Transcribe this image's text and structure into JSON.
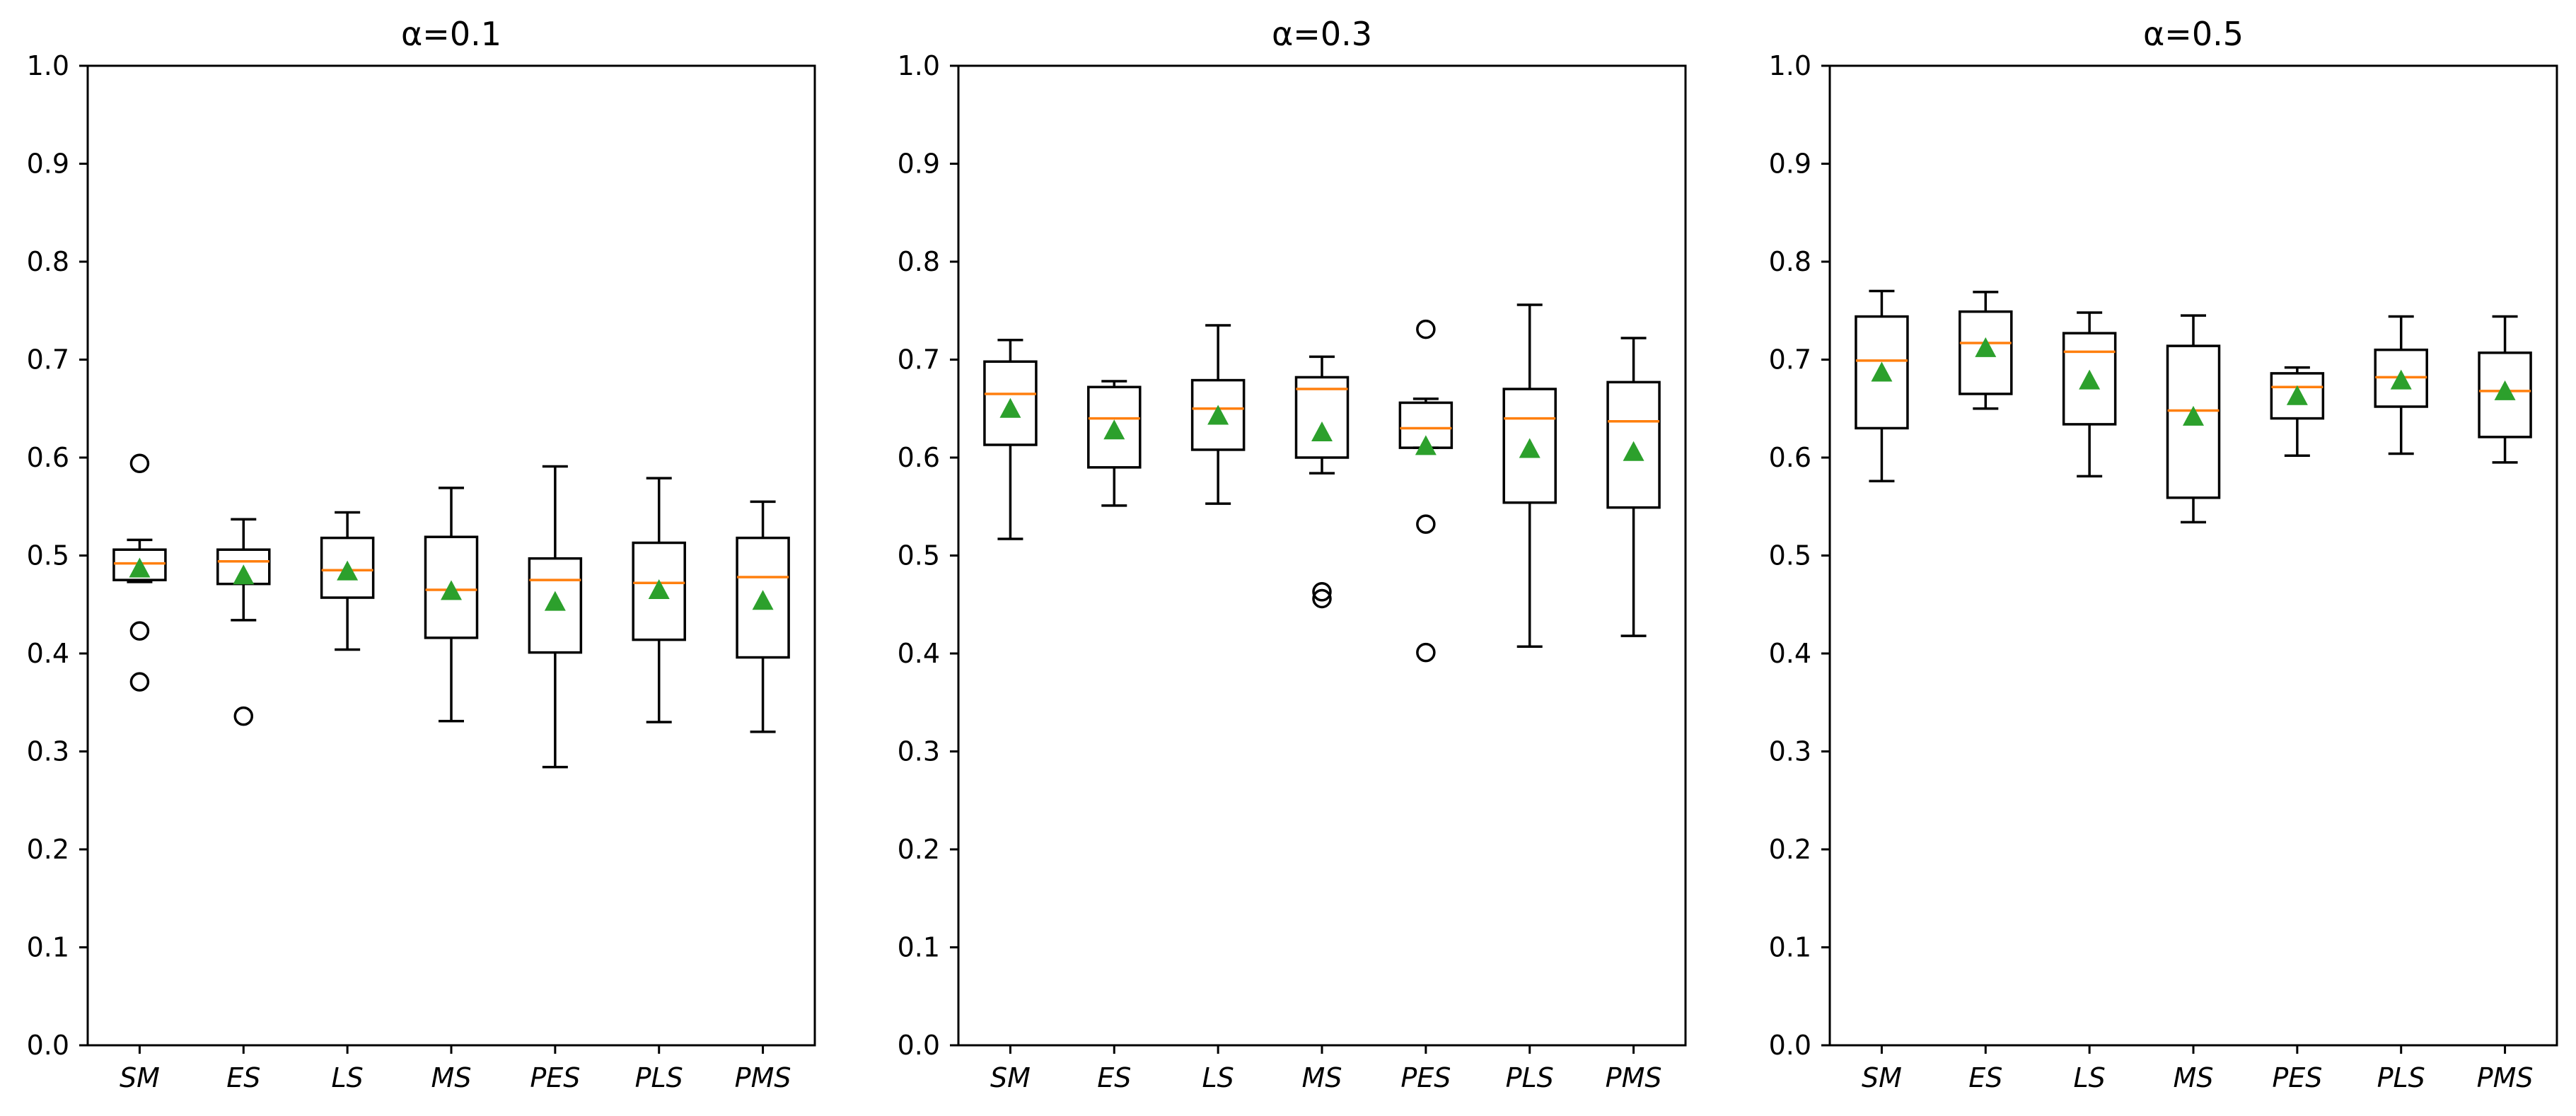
{
  "chart_data": [
    {
      "type": "boxplot",
      "title": "α=0.1",
      "ylim": [
        0.0,
        1.0
      ],
      "yticks": [
        "0.0",
        "0.1",
        "0.2",
        "0.3",
        "0.4",
        "0.5",
        "0.6",
        "0.7",
        "0.8",
        "0.9",
        "1.0"
      ],
      "categories": [
        "SM",
        "ES",
        "LS",
        "MS",
        "PES",
        "PLS",
        "PMS"
      ],
      "boxes": [
        {
          "whislo": 0.473,
          "q1": 0.475,
          "med": 0.492,
          "q3": 0.506,
          "whishi": 0.516,
          "mean": 0.487,
          "fliers": [
            0.594,
            0.423,
            0.371
          ]
        },
        {
          "whislo": 0.434,
          "q1": 0.471,
          "med": 0.494,
          "q3": 0.506,
          "whishi": 0.537,
          "mean": 0.48,
          "fliers": [
            0.336
          ]
        },
        {
          "whislo": 0.404,
          "q1": 0.457,
          "med": 0.485,
          "q3": 0.518,
          "whishi": 0.544,
          "mean": 0.484,
          "fliers": []
        },
        {
          "whislo": 0.331,
          "q1": 0.416,
          "med": 0.465,
          "q3": 0.519,
          "whishi": 0.569,
          "mean": 0.464,
          "fliers": []
        },
        {
          "whislo": 0.284,
          "q1": 0.401,
          "med": 0.475,
          "q3": 0.497,
          "whishi": 0.591,
          "mean": 0.453,
          "fliers": []
        },
        {
          "whislo": 0.33,
          "q1": 0.414,
          "med": 0.472,
          "q3": 0.513,
          "whishi": 0.579,
          "mean": 0.465,
          "fliers": []
        },
        {
          "whislo": 0.32,
          "q1": 0.396,
          "med": 0.478,
          "q3": 0.518,
          "whishi": 0.555,
          "mean": 0.454,
          "fliers": []
        }
      ]
    },
    {
      "type": "boxplot",
      "title": "α=0.3",
      "ylim": [
        0.0,
        1.0
      ],
      "yticks": [
        "0.0",
        "0.1",
        "0.2",
        "0.3",
        "0.4",
        "0.5",
        "0.6",
        "0.7",
        "0.8",
        "0.9",
        "1.0"
      ],
      "categories": [
        "SM",
        "ES",
        "LS",
        "MS",
        "PES",
        "PLS",
        "PMS"
      ],
      "boxes": [
        {
          "whislo": 0.517,
          "q1": 0.613,
          "med": 0.665,
          "q3": 0.698,
          "whishi": 0.72,
          "mean": 0.65,
          "fliers": []
        },
        {
          "whislo": 0.551,
          "q1": 0.59,
          "med": 0.64,
          "q3": 0.672,
          "whishi": 0.678,
          "mean": 0.628,
          "fliers": []
        },
        {
          "whislo": 0.553,
          "q1": 0.608,
          "med": 0.65,
          "q3": 0.679,
          "whishi": 0.735,
          "mean": 0.643,
          "fliers": []
        },
        {
          "whislo": 0.584,
          "q1": 0.6,
          "med": 0.67,
          "q3": 0.682,
          "whishi": 0.703,
          "mean": 0.626,
          "fliers": [
            0.463,
            0.456
          ]
        },
        {
          "whislo": 0.61,
          "q1": 0.61,
          "med": 0.63,
          "q3": 0.656,
          "whishi": 0.66,
          "mean": 0.612,
          "fliers": [
            0.731,
            0.532,
            0.401
          ]
        },
        {
          "whislo": 0.407,
          "q1": 0.554,
          "med": 0.64,
          "q3": 0.67,
          "whishi": 0.756,
          "mean": 0.609,
          "fliers": []
        },
        {
          "whislo": 0.418,
          "q1": 0.549,
          "med": 0.637,
          "q3": 0.677,
          "whishi": 0.722,
          "mean": 0.606,
          "fliers": []
        }
      ]
    },
    {
      "type": "boxplot",
      "title": "α=0.5",
      "ylim": [
        0.0,
        1.0
      ],
      "yticks": [
        "0.0",
        "0.1",
        "0.2",
        "0.3",
        "0.4",
        "0.5",
        "0.6",
        "0.7",
        "0.8",
        "0.9",
        "1.0"
      ],
      "categories": [
        "SM",
        "ES",
        "LS",
        "MS",
        "PES",
        "PLS",
        "PMS"
      ],
      "boxes": [
        {
          "whislo": 0.576,
          "q1": 0.63,
          "med": 0.699,
          "q3": 0.744,
          "whishi": 0.77,
          "mean": 0.687,
          "fliers": []
        },
        {
          "whislo": 0.65,
          "q1": 0.665,
          "med": 0.717,
          "q3": 0.749,
          "whishi": 0.769,
          "mean": 0.712,
          "fliers": []
        },
        {
          "whislo": 0.581,
          "q1": 0.634,
          "med": 0.708,
          "q3": 0.727,
          "whishi": 0.748,
          "mean": 0.679,
          "fliers": []
        },
        {
          "whislo": 0.534,
          "q1": 0.559,
          "med": 0.648,
          "q3": 0.714,
          "whishi": 0.745,
          "mean": 0.642,
          "fliers": []
        },
        {
          "whislo": 0.602,
          "q1": 0.64,
          "med": 0.672,
          "q3": 0.686,
          "whishi": 0.692,
          "mean": 0.663,
          "fliers": []
        },
        {
          "whislo": 0.604,
          "q1": 0.652,
          "med": 0.682,
          "q3": 0.71,
          "whishi": 0.744,
          "mean": 0.679,
          "fliers": []
        },
        {
          "whislo": 0.595,
          "q1": 0.621,
          "med": 0.668,
          "q3": 0.707,
          "whishi": 0.744,
          "mean": 0.668,
          "fliers": []
        }
      ]
    }
  ],
  "colors": {
    "median": "#ff7f0e",
    "mean_marker": "#2ca02c",
    "box": "#000000",
    "background": "#ffffff"
  }
}
